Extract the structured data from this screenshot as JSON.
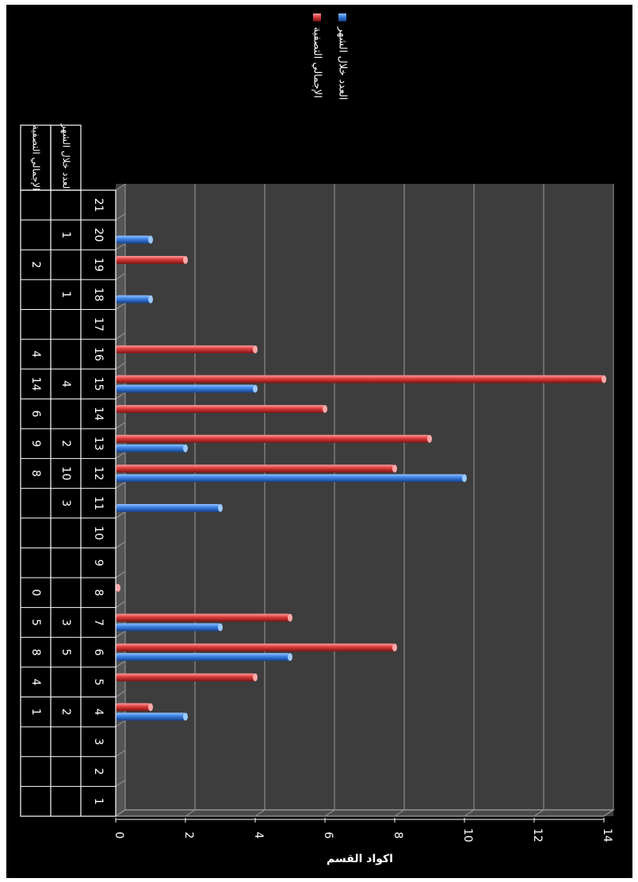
{
  "chart_data": {
    "type": "bar",
    "orientation": "horizontal",
    "title": "",
    "xlabel": "اكواد القسم",
    "ylabel": "",
    "xlim": [
      0,
      14
    ],
    "x_ticks": [
      0,
      2,
      4,
      6,
      8,
      10,
      12,
      14
    ],
    "grid": true,
    "legend_position": "top",
    "categories": [
      "1",
      "2",
      "3",
      "4",
      "5",
      "6",
      "7",
      "8",
      "9",
      "10",
      "11",
      "12",
      "13",
      "14",
      "15",
      "16",
      "17",
      "18",
      "19",
      "20",
      "21"
    ],
    "series": [
      {
        "name": "العدد خلال الشهر",
        "color": "#3a7fe0",
        "values": [
          null,
          null,
          null,
          2,
          null,
          5,
          3,
          null,
          null,
          null,
          3,
          10,
          2,
          null,
          4,
          null,
          null,
          1,
          null,
          1,
          null
        ]
      },
      {
        "name": "الإجمالي التصفية",
        "color": "#d93a3a",
        "values": [
          null,
          null,
          null,
          1,
          4,
          8,
          5,
          0,
          null,
          null,
          null,
          8,
          9,
          6,
          14,
          4,
          null,
          null,
          2,
          null,
          null
        ]
      }
    ]
  }
}
